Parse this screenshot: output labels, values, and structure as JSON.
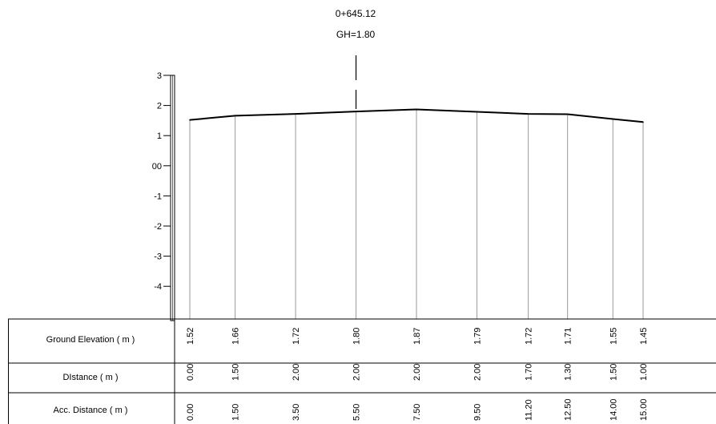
{
  "header": {
    "chainage": "0+645.12",
    "ground_height": "GH=1.80"
  },
  "scale": {
    "labels": [
      "3",
      "2",
      "1",
      "00",
      "-1",
      "-2",
      "-3",
      "-4"
    ]
  },
  "table": {
    "row_labels": [
      "Ground Elevation ( m )",
      "DIstance ( m )",
      "Acc. Distance ( m )"
    ],
    "ground_elevation": [
      "1.52",
      "1.66",
      "1.72",
      "1.80",
      "1.87",
      "1.79",
      "1.72",
      "1.71",
      "1.55",
      "1.45"
    ],
    "distance": [
      "0.00",
      "1.50",
      "2.00",
      "2.00",
      "2.00",
      "2.00",
      "1.70",
      "1.30",
      "1.50",
      "1.00"
    ],
    "acc_distance": [
      "0.00",
      "1.50",
      "3.50",
      "5.50",
      "7.50",
      "9.50",
      "11.20",
      "12.50",
      "14.00",
      "15.00"
    ]
  },
  "chart_data": {
    "type": "line",
    "x": [
      0.0,
      1.5,
      3.5,
      5.5,
      7.5,
      9.5,
      11.2,
      12.5,
      14.0,
      15.0
    ],
    "y": [
      1.52,
      1.66,
      1.72,
      1.8,
      1.87,
      1.79,
      1.72,
      1.71,
      1.55,
      1.45
    ],
    "centerline_x": 5.5,
    "ylim": [
      -4,
      3
    ],
    "xlim": [
      0.0,
      15.0
    ]
  }
}
